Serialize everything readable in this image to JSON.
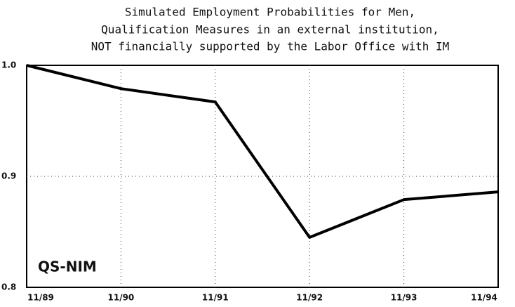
{
  "chart_data": {
    "type": "line",
    "title": [
      "Simulated Employment Probabilities for Men,",
      "Qualification Measures in an external institution,",
      "NOT financially supported by the Labor Office with IM"
    ],
    "annotation": "QS-NIM",
    "categories": [
      "11/89",
      "11/90",
      "11/91",
      "11/92",
      "11/93",
      "11/94"
    ],
    "values": [
      1.0,
      0.979,
      0.967,
      0.845,
      0.879,
      0.886
    ],
    "color": "#000000",
    "ylim": [
      0.8,
      1.0
    ],
    "yticks": [
      0.8,
      0.9,
      {
        "value": 1.0,
        "label": "1.0"
      }
    ],
    "grid": true
  }
}
